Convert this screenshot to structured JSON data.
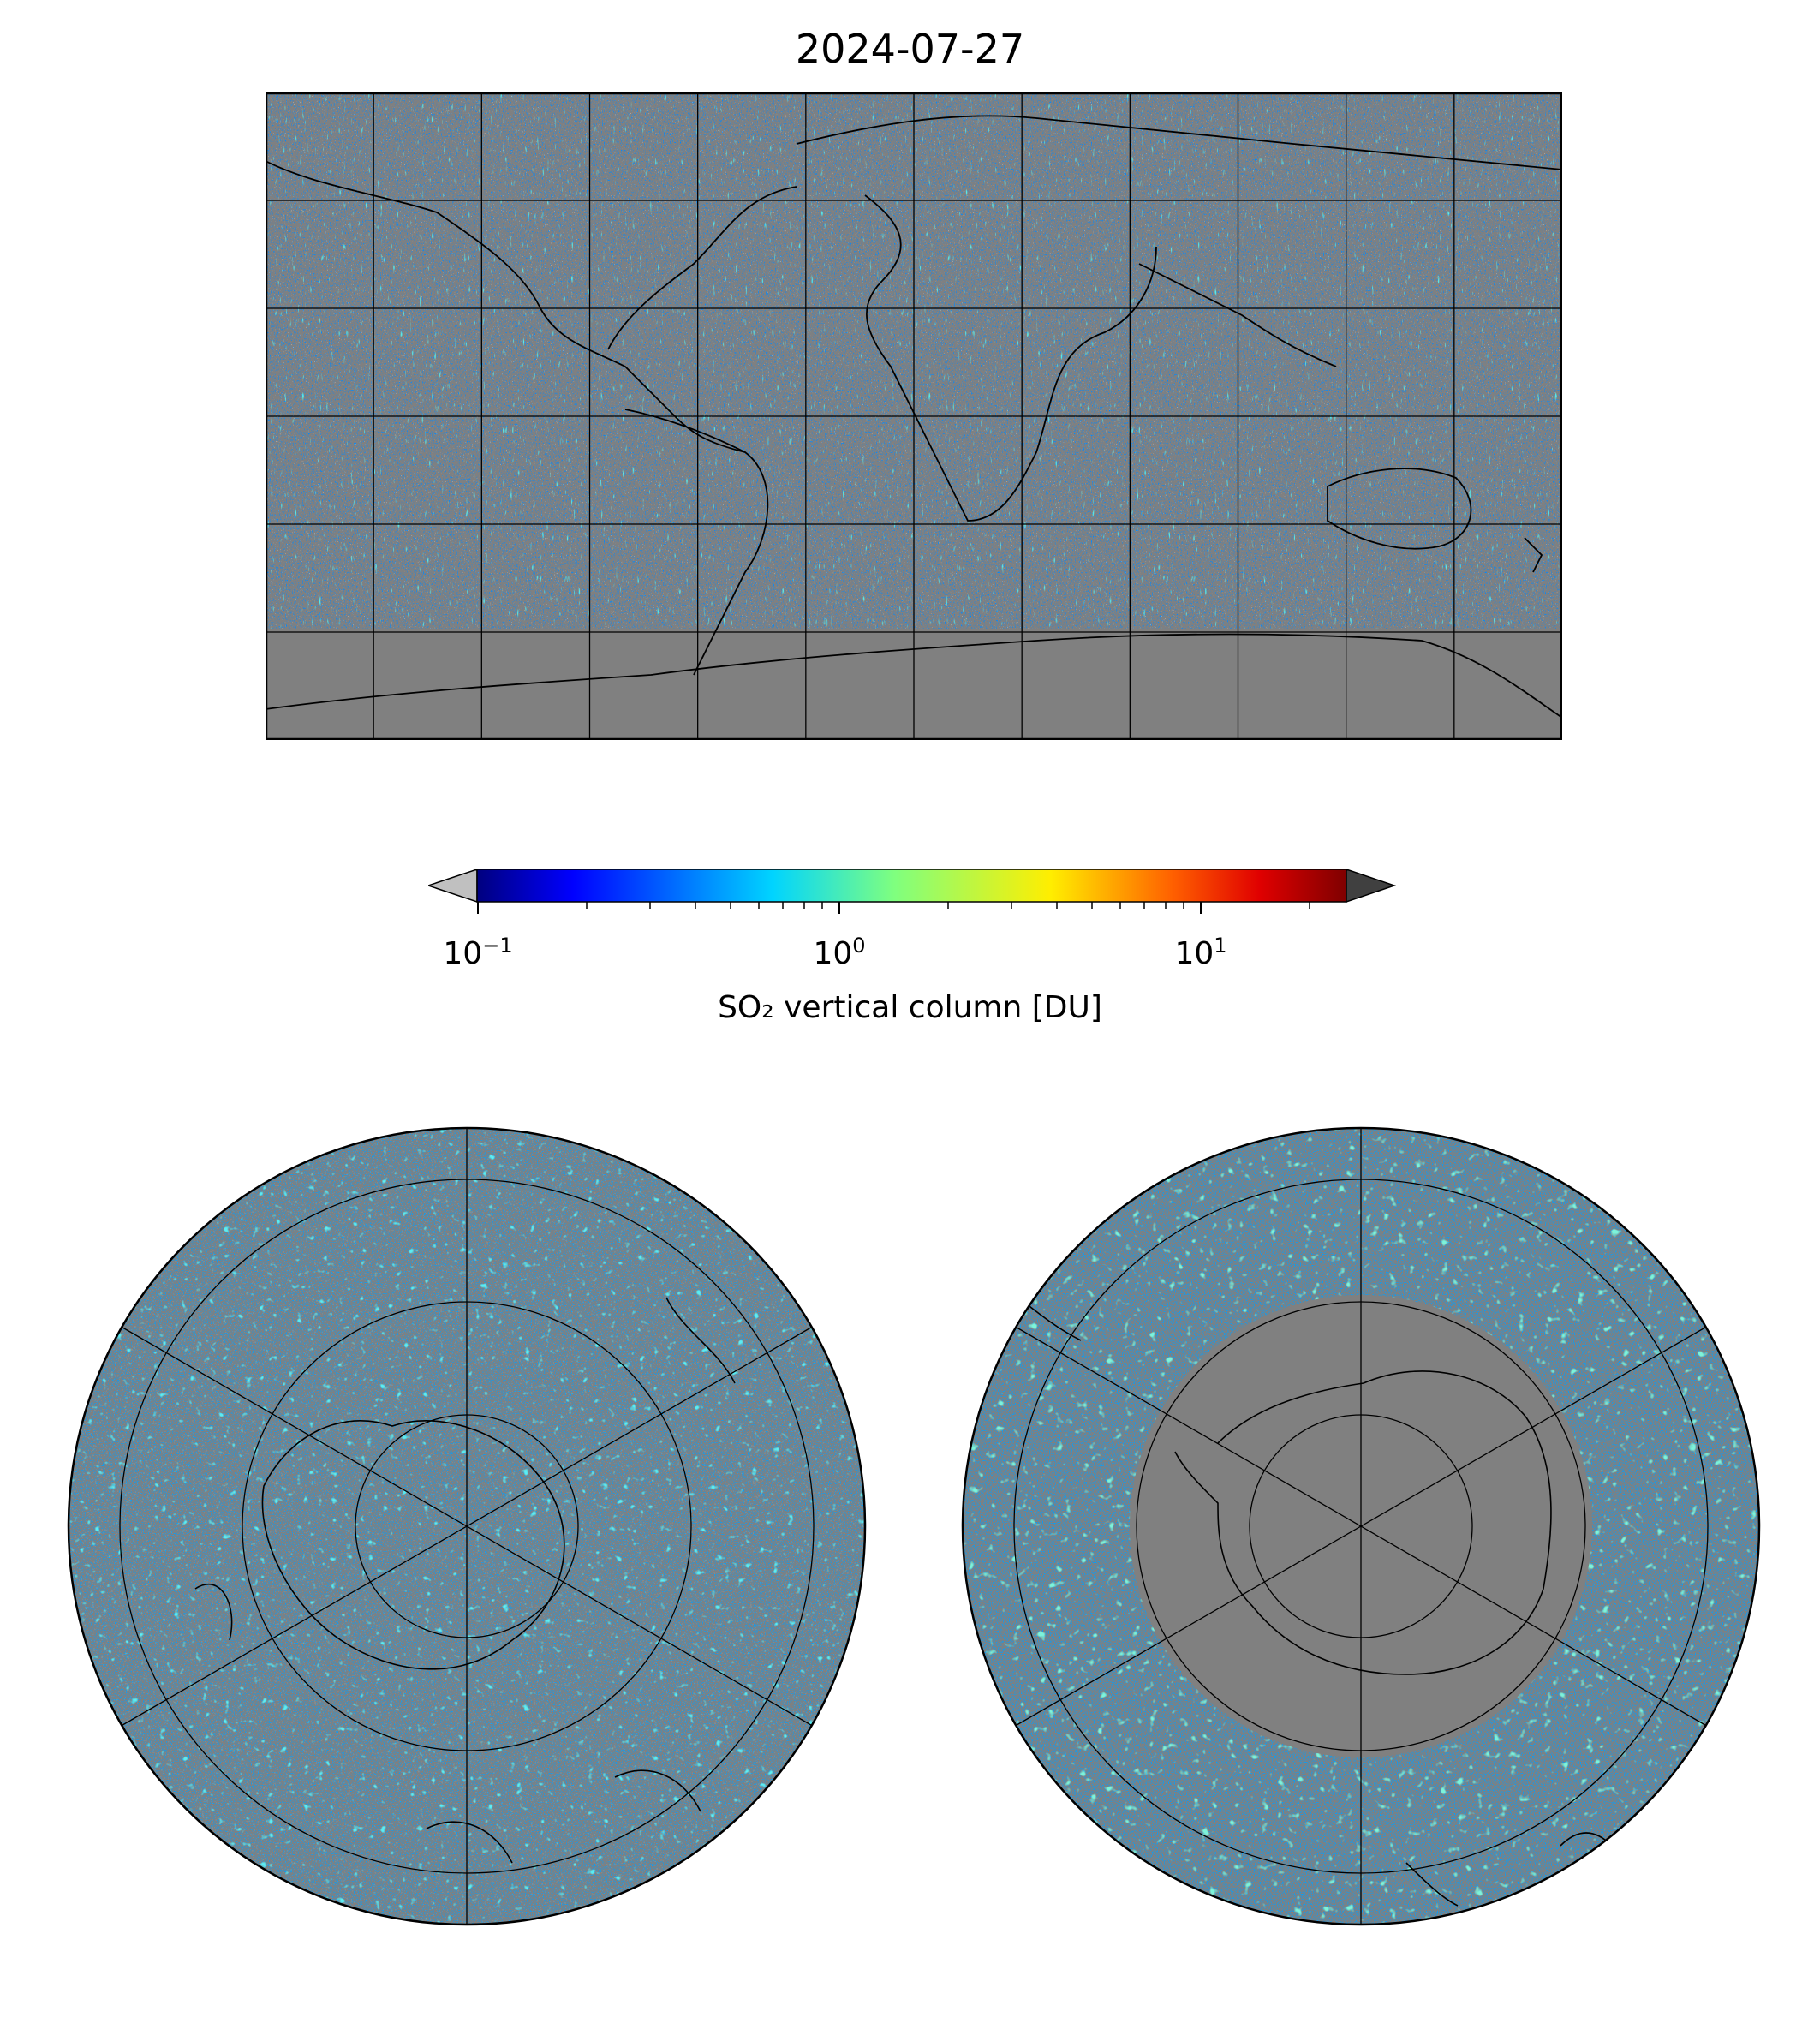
{
  "title": "2024-07-27",
  "colorbar": {
    "label": "SO₂ vertical column [DU]",
    "scale": "log",
    "range": [
      0.1,
      25
    ],
    "ticks": [
      {
        "base": "10",
        "exp": "−1",
        "value": 0.1
      },
      {
        "base": "10",
        "exp": "0",
        "value": 1
      },
      {
        "base": "10",
        "exp": "1",
        "value": 10
      }
    ],
    "colormap": [
      "#00007f",
      "#0000ff",
      "#007fff",
      "#00ffff",
      "#7fff7f",
      "#ffff00",
      "#ff7f00",
      "#ff0000",
      "#7f0000"
    ],
    "under_color": "#c0c0c0",
    "over_color": "#404040"
  },
  "maps": {
    "world": {
      "projection": "plate-carree",
      "lon_range": [
        -180,
        180
      ],
      "lat_range": [
        -90,
        90
      ],
      "grid_step_deg": 30
    },
    "north_polar": {
      "projection": "north-polar-stereographic"
    },
    "south_polar": {
      "projection": "south-polar-stereographic"
    }
  },
  "colors": {
    "background_fill": "#808080",
    "land_outline": "#000000",
    "grid": "#000000"
  }
}
